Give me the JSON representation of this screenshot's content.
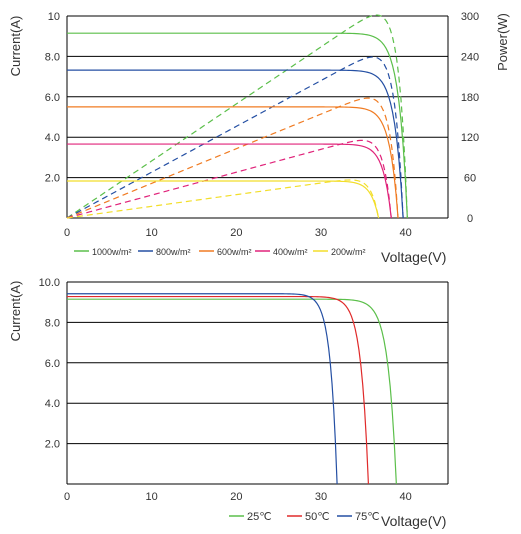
{
  "chart_data": [
    {
      "type": "line",
      "xlabel": "Voltage(V)",
      "ylabel": "Current(A)",
      "y2label": "Power(W)",
      "xlim": [
        0,
        45
      ],
      "ylim": [
        0,
        10
      ],
      "y2lim": [
        0,
        300
      ],
      "x_ticks": [
        "0",
        "10",
        "20",
        "30",
        "40"
      ],
      "y_ticks": [
        "2.0",
        "4.0",
        "6.0",
        "8.0",
        "10"
      ],
      "y2_ticks": [
        "0",
        "60",
        "120",
        "180",
        "240",
        "300"
      ],
      "grid": "horizontal",
      "legend_position": "bottom",
      "series": [
        {
          "name": "1000w/m²",
          "color": "#5bbf4a",
          "isc": 9.15,
          "voc": 40.2,
          "vmp": 32.6,
          "pmax": 276
        },
        {
          "name": "800w/m²",
          "color": "#244fa3",
          "isc": 7.32,
          "voc": 39.7,
          "vmp": 32.5,
          "pmax": 221
        },
        {
          "name": "600w/m²",
          "color": "#f07b22",
          "isc": 5.5,
          "voc": 39.1,
          "vmp": 32.3,
          "pmax": 166
        },
        {
          "name": "400w/m²",
          "color": "#e0237a",
          "isc": 3.66,
          "voc": 38.3,
          "vmp": 31.8,
          "pmax": 108
        },
        {
          "name": "200w/m²",
          "color": "#f2de2a",
          "isc": 1.83,
          "voc": 36.8,
          "vmp": 30.6,
          "pmax": 53
        }
      ]
    },
    {
      "type": "line",
      "xlabel": "Voltage(V)",
      "ylabel": "Current(A)",
      "xlim": [
        0,
        45
      ],
      "ylim": [
        0,
        10
      ],
      "x_ticks": [
        "0",
        "10",
        "20",
        "30",
        "40"
      ],
      "y_ticks": [
        "2.0",
        "4.0",
        "6.0",
        "8.0",
        "10.0"
      ],
      "grid": "horizontal",
      "legend_position": "bottom",
      "series": [
        {
          "name": "25℃",
          "color": "#5bbf4a",
          "isc": 9.15,
          "voc": 38.9
        },
        {
          "name": "50℃",
          "color": "#e02a2a",
          "isc": 9.28,
          "voc": 35.6
        },
        {
          "name": "75℃",
          "color": "#244fa3",
          "isc": 9.42,
          "voc": 31.9
        }
      ]
    }
  ]
}
